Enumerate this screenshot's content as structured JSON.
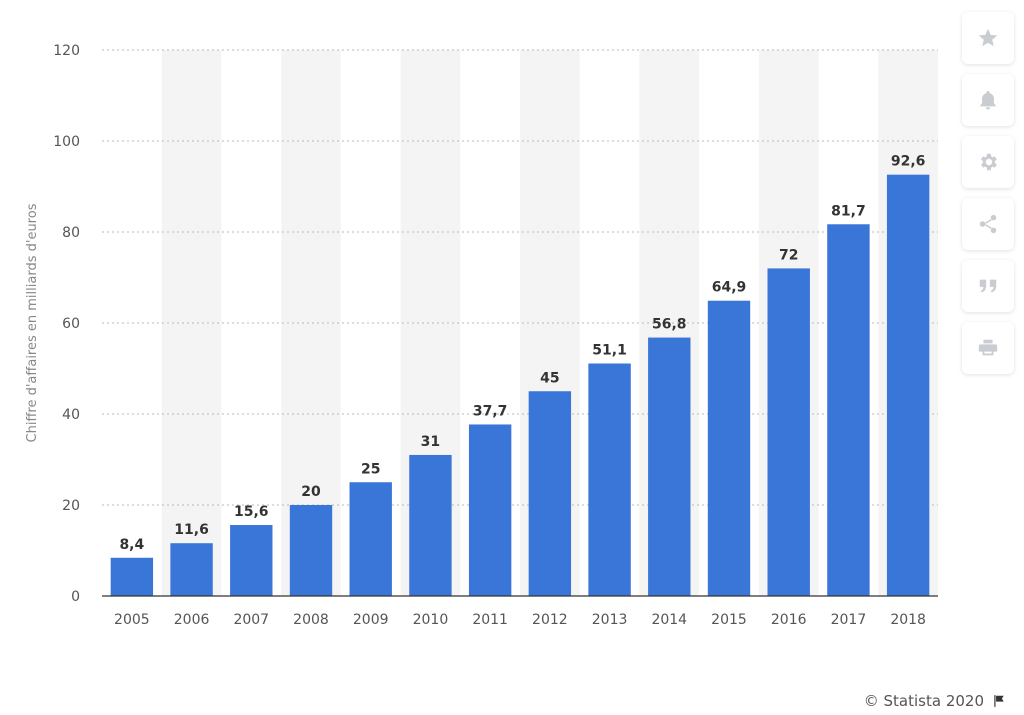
{
  "chart_data": {
    "type": "bar",
    "title": "",
    "xlabel": "",
    "ylabel": "Chiffre d'affaires en milliards d'euros",
    "ylim": [
      0,
      120
    ],
    "yticks": [
      "0",
      "20",
      "40",
      "60",
      "80",
      "100",
      "120"
    ],
    "grid": true,
    "categories": [
      "2005",
      "2006",
      "2007",
      "2008",
      "2009",
      "2010",
      "2011",
      "2012",
      "2013",
      "2014",
      "2015",
      "2016",
      "2017",
      "2018"
    ],
    "values": [
      8.4,
      11.6,
      15.6,
      20,
      25,
      31,
      37.7,
      45,
      51.1,
      56.8,
      64.9,
      72,
      81.7,
      92.6
    ],
    "value_labels": [
      "8,4",
      "11,6",
      "15,6",
      "20",
      "25",
      "31",
      "37,7",
      "45",
      "51,1",
      "56,8",
      "64,9",
      "72",
      "81,7",
      "92,6"
    ],
    "bar_color": "#3a75d8",
    "band_color": "#f4f4f5"
  },
  "toolbar": [
    {
      "name": "star-icon"
    },
    {
      "name": "bell-icon"
    },
    {
      "name": "gear-icon"
    },
    {
      "name": "share-icon"
    },
    {
      "name": "quote-icon"
    },
    {
      "name": "print-icon"
    }
  ],
  "footer": {
    "copyright": "© Statista 2020",
    "icon": "flag-icon"
  }
}
